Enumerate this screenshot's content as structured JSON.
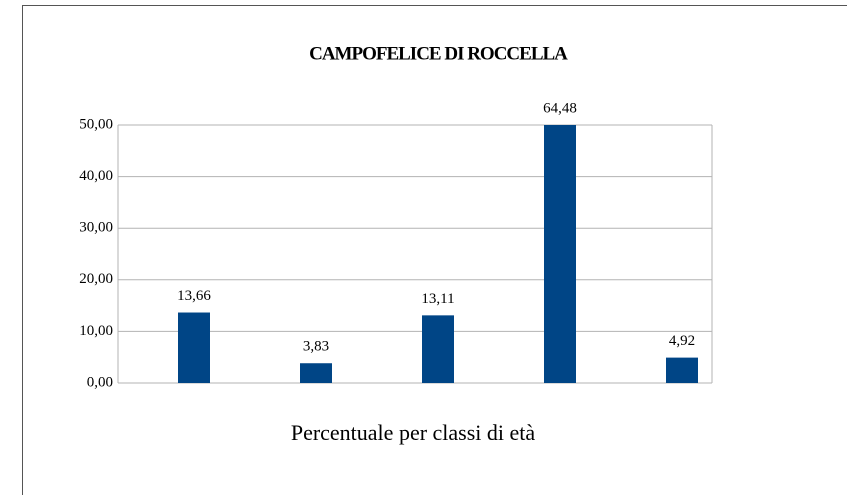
{
  "chart_data": {
    "type": "bar",
    "title": "CAMPOFELICE DI ROCCELLA",
    "x_label": "Percentuale per classi di età",
    "categories": [
      null,
      null,
      null,
      null,
      null
    ],
    "values": [
      13.66,
      3.83,
      13.11,
      64.48,
      4.92
    ],
    "value_labels": [
      "13,66",
      "3,83",
      "13,11",
      "64,48",
      "4,92"
    ],
    "color": "#004586",
    "ylim": [
      0,
      50
    ],
    "yticks": [
      {
        "value": 0,
        "label": "0,00"
      },
      {
        "value": 10,
        "label": "10,00"
      },
      {
        "value": 20,
        "label": "20,00"
      },
      {
        "value": 30,
        "label": "30,00"
      },
      {
        "value": 40,
        "label": "40,00"
      },
      {
        "value": 50,
        "label": "50,00"
      }
    ],
    "grid": true
  }
}
